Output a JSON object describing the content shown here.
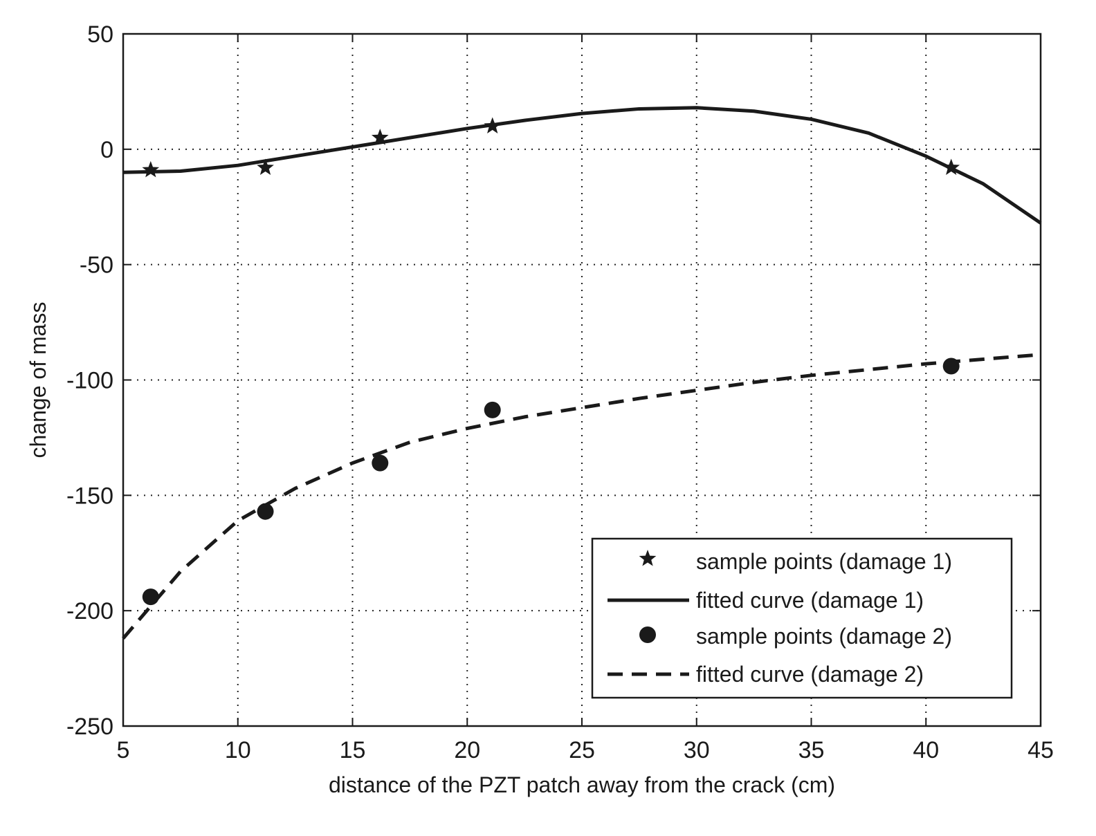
{
  "chart_data": {
    "type": "line",
    "title": "",
    "xlabel": "distance of the PZT patch away from the crack (cm)",
    "ylabel": "change of mass",
    "xlim": [
      5,
      45
    ],
    "ylim": [
      -250,
      50
    ],
    "xticks": [
      5,
      10,
      15,
      20,
      25,
      30,
      35,
      40,
      45
    ],
    "yticks": [
      -250,
      -200,
      -150,
      -100,
      -50,
      0,
      50
    ],
    "grid": true,
    "legend_position": "bottom-right",
    "colors": {
      "ink": "#1a1a1a",
      "background": "#ffffff"
    },
    "series": [
      {
        "name": "sample points (damage 1)",
        "kind": "scatter",
        "marker": "star",
        "x": [
          6.2,
          11.2,
          16.2,
          21.1,
          41.1
        ],
        "y": [
          -9,
          -8,
          5,
          10,
          -8
        ]
      },
      {
        "name": "fitted curve (damage 1)",
        "kind": "line",
        "linestyle": "solid",
        "x": [
          5,
          7.5,
          10,
          12.5,
          15,
          17.5,
          20,
          22.5,
          25,
          27.5,
          30,
          32.5,
          35,
          37.5,
          40,
          42.5,
          45
        ],
        "y": [
          -10,
          -9.5,
          -7,
          -3,
          1,
          5,
          9,
          12.5,
          15.5,
          17.5,
          18,
          16.5,
          13,
          7,
          -3,
          -15,
          -32
        ]
      },
      {
        "name": "sample points (damage 2)",
        "kind": "scatter",
        "marker": "circle",
        "x": [
          6.2,
          11.2,
          16.2,
          21.1,
          41.1
        ],
        "y": [
          -194,
          -157,
          -136,
          -113,
          -94
        ]
      },
      {
        "name": "fitted curve (damage 2)",
        "kind": "line",
        "linestyle": "dashed",
        "x": [
          5,
          7.5,
          10,
          12.5,
          15,
          17.5,
          20,
          22.5,
          25,
          27.5,
          30,
          32.5,
          35,
          37.5,
          40,
          42.5,
          45
        ],
        "y": [
          -212,
          -183,
          -161,
          -147,
          -136,
          -127,
          -121,
          -116,
          -112,
          -108,
          -104.5,
          -101,
          -98,
          -95.5,
          -93,
          -91,
          -89
        ]
      }
    ]
  }
}
